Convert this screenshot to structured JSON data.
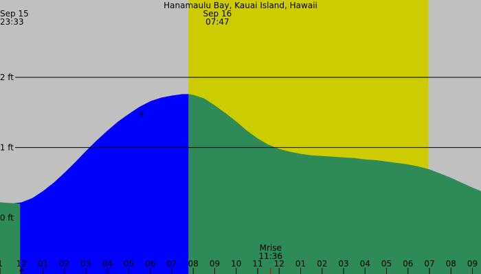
{
  "chart_data": {
    "type": "area",
    "title": "Hanamaulu Bay, Kauai Island, Hawaii",
    "y_unit": "ft",
    "ylim": [
      -0.8,
      3.1
    ],
    "y_ticks": [
      {
        "label": "0 ft",
        "value": 0
      },
      {
        "label": "1 ft",
        "value": 1
      },
      {
        "label": "2 ft",
        "value": 2
      }
    ],
    "x_ticks": [
      "1",
      "12",
      "01",
      "02",
      "03",
      "04",
      "05",
      "06",
      "07",
      "08",
      "09",
      "10",
      "11",
      "12",
      "01",
      "02",
      "03",
      "04",
      "05",
      "06",
      "07",
      "08",
      "09"
    ],
    "x_tick_hours": [
      -1,
      0,
      1,
      2,
      3,
      4,
      5,
      6,
      7,
      8,
      9,
      10,
      11,
      12,
      13,
      14,
      15,
      16,
      17,
      18,
      19,
      20,
      21
    ],
    "xlim_hours": [
      -1.0,
      21.4
    ],
    "events": [
      {
        "kind": "moonset",
        "date": "Sep 15",
        "time": "23:33",
        "hour": -0.45
      },
      {
        "kind": "sunrise",
        "date": "Sep 16",
        "time": "07:47",
        "hour": 7.78
      },
      {
        "kind": "moonrise",
        "label": "Mrise",
        "time": "11:36",
        "hour": 11.6
      }
    ],
    "daylight_end_hour": 18.95,
    "tide_split_hour": 7.78,
    "series": [
      {
        "x_hours": [
          -1.0,
          -0.5,
          0.0,
          0.5,
          1.0,
          1.5,
          2.0,
          2.5,
          3.0,
          3.5,
          4.0,
          4.5,
          5.0,
          5.5,
          6.0,
          6.5,
          7.0,
          7.5,
          7.78,
          8.0,
          8.5,
          9.0,
          9.5,
          10.0,
          10.5,
          11.0,
          11.5,
          12.0,
          12.5,
          13.0,
          13.5,
          14.0,
          14.5,
          15.0,
          15.5,
          16.0,
          16.5,
          17.0,
          17.5,
          18.0,
          18.5,
          19.0,
          19.5,
          20.0,
          20.5,
          21.0,
          21.4
        ],
        "y_ft": [
          0.22,
          0.2,
          0.22,
          0.28,
          0.38,
          0.5,
          0.64,
          0.79,
          0.95,
          1.1,
          1.24,
          1.37,
          1.48,
          1.58,
          1.66,
          1.71,
          1.74,
          1.76,
          1.76,
          1.75,
          1.7,
          1.6,
          1.49,
          1.37,
          1.24,
          1.13,
          1.04,
          0.98,
          0.94,
          0.91,
          0.89,
          0.88,
          0.87,
          0.86,
          0.85,
          0.83,
          0.82,
          0.8,
          0.78,
          0.76,
          0.73,
          0.69,
          0.63,
          0.57,
          0.5,
          0.43,
          0.38
        ]
      }
    ],
    "colors": {
      "night": "#c0c0c0",
      "day": "#cccc00",
      "tide_rising": "#0000ff",
      "tide_falling": "#2e8b57",
      "moonrise_tick": "#cc0000",
      "text": "#000000"
    }
  }
}
